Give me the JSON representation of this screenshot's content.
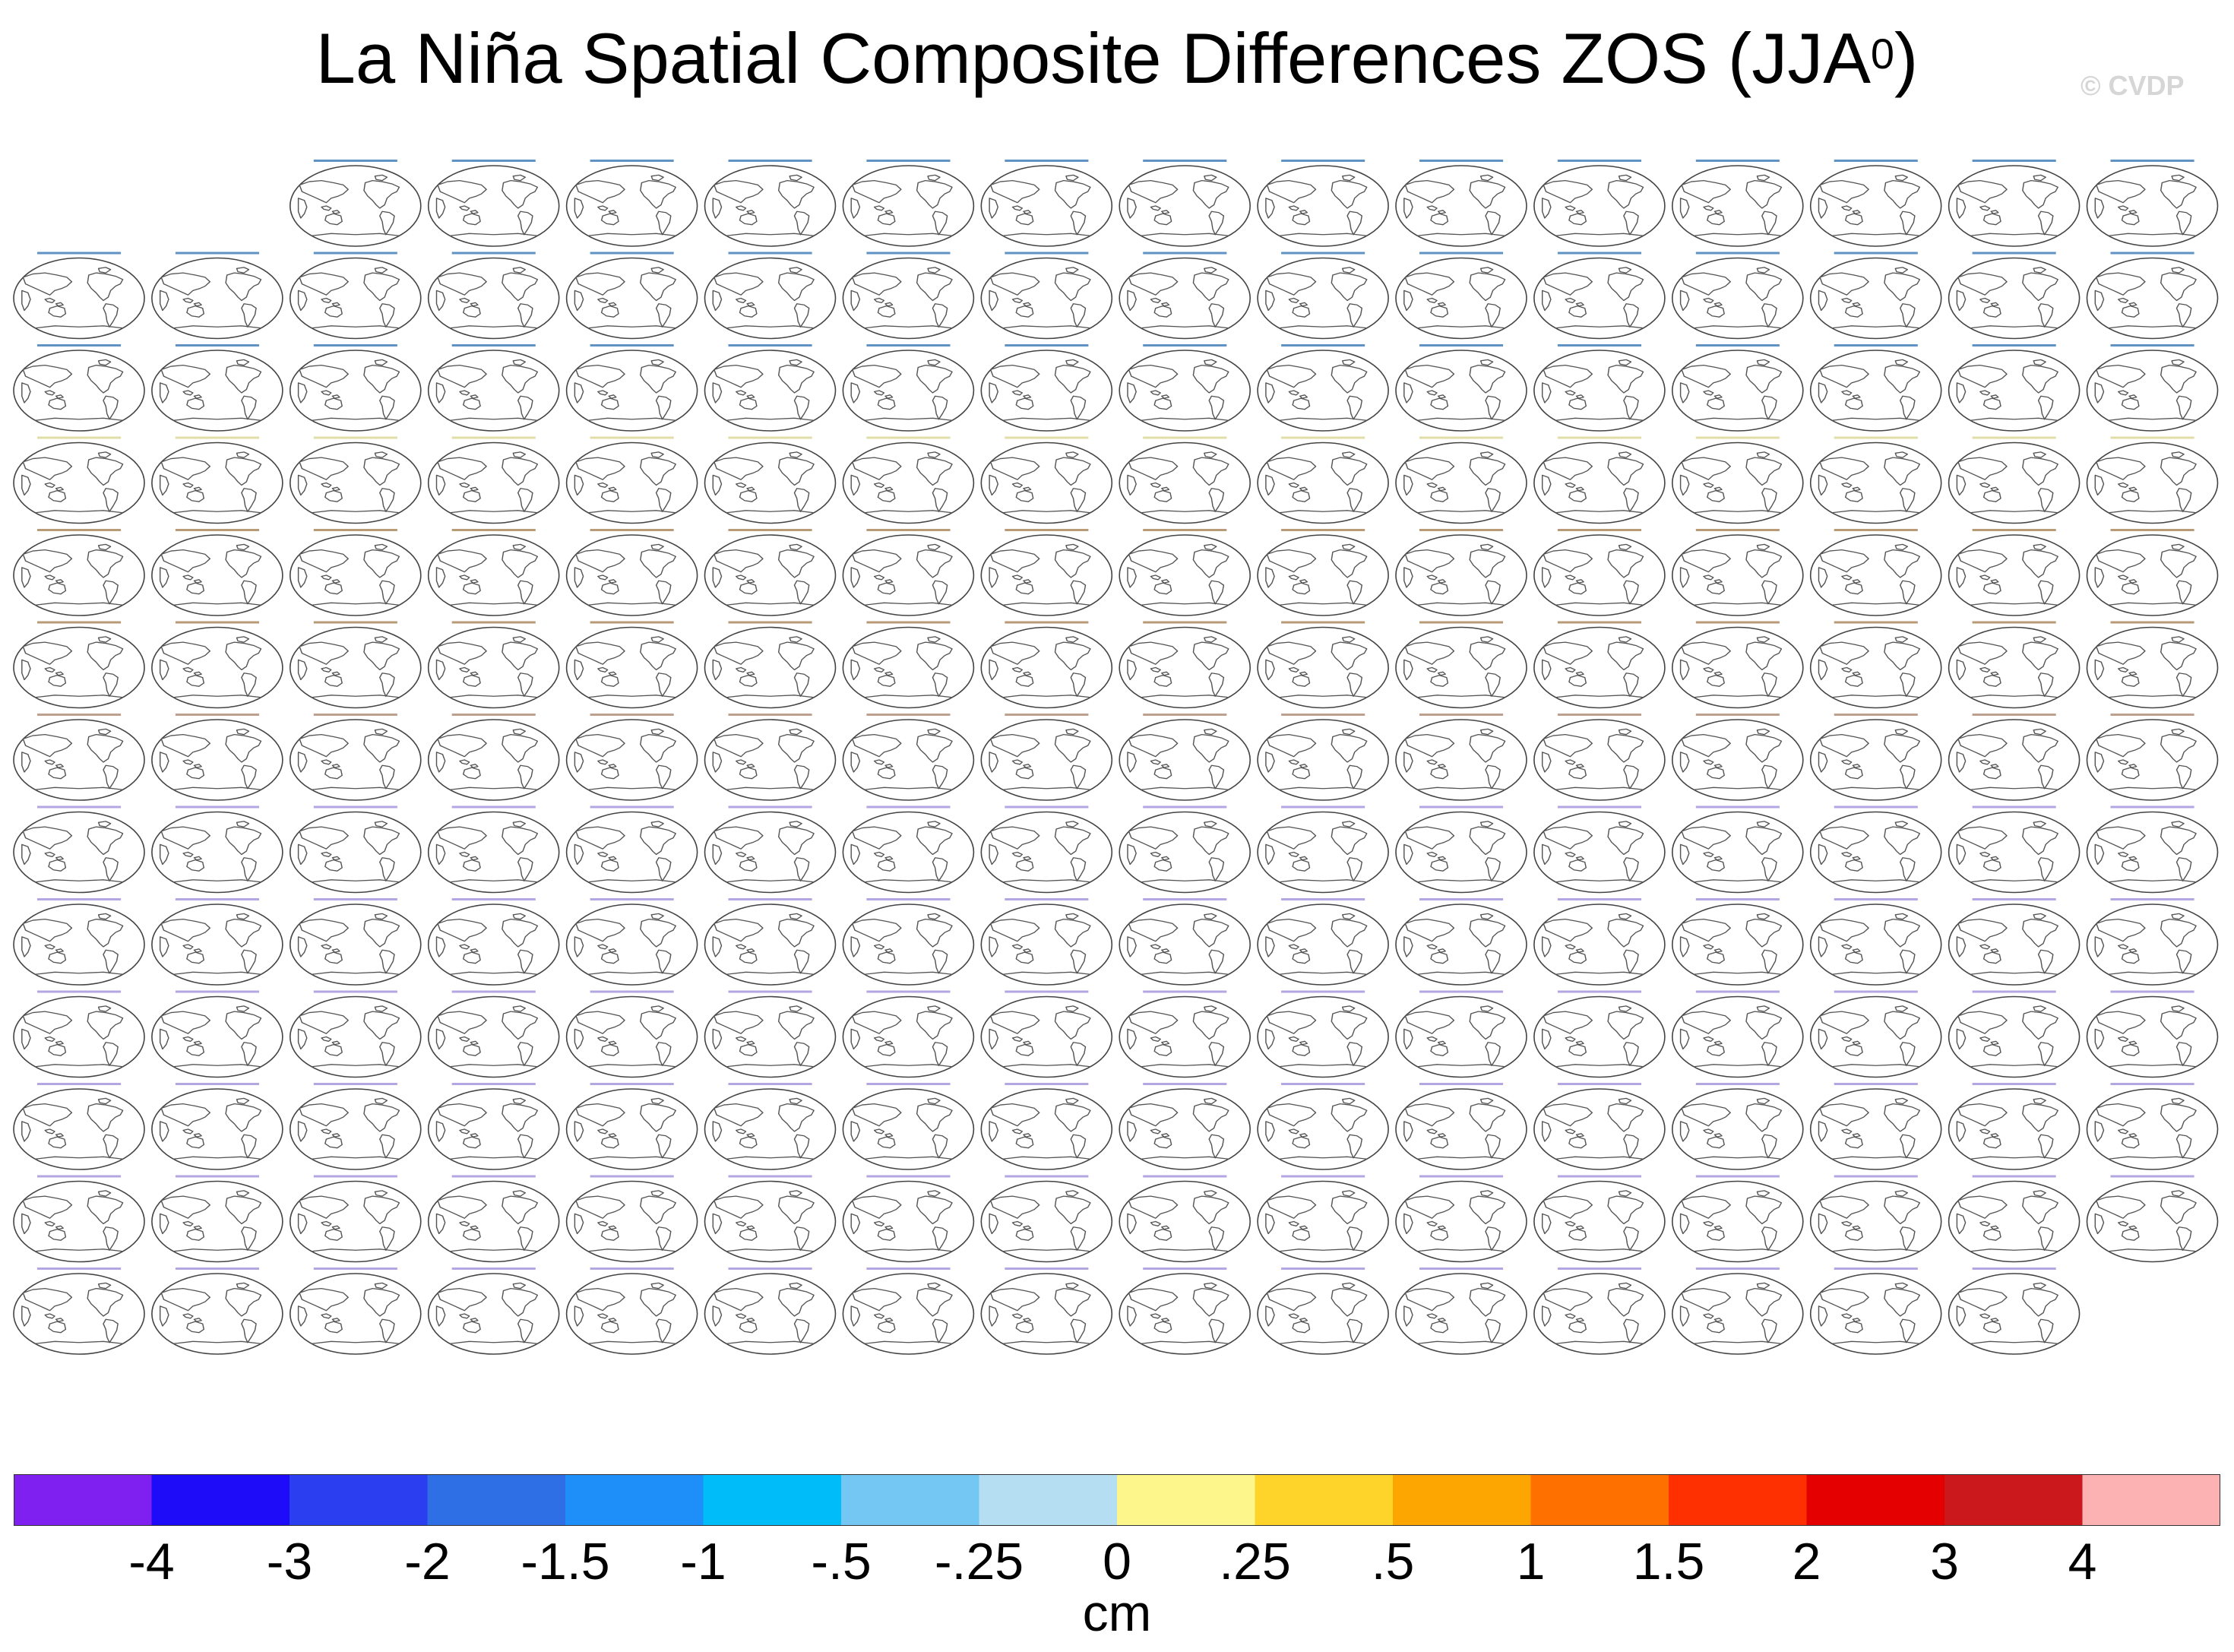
{
  "title": "La Niña Spatial Composite Differences ZOS (JJA",
  "title_sup": "0",
  "title_close": ")",
  "watermark": "© CVDP",
  "chart_data": {
    "type": "panel-grid",
    "title": "La Niña Spatial Composite Differences ZOS (JJA0)",
    "variable": "ZOS",
    "season": "JJA0",
    "colorbar": {
      "units": "cm",
      "levels": [
        "-4",
        "-3",
        "-2",
        "-1.5",
        "-1",
        "-.5",
        "-.25",
        "0",
        ".25",
        ".5",
        "1",
        "1.5",
        "2",
        "3",
        "4"
      ],
      "colors": [
        "#7f1ff0",
        "#1e0bf8",
        "#2c3ff0",
        "#2f6fe6",
        "#1e8ff8",
        "#00bdfa",
        "#74c7f2",
        "#b5def3",
        "#fdf68a",
        "#fed42a",
        "#fda500",
        "#fe7100",
        "#fe2f00",
        "#e40000",
        "#cb181d",
        "#fcb1b2"
      ]
    },
    "panel_rows": [
      {
        "count": 14,
        "offset": 2,
        "color": "#2b6fb0"
      },
      {
        "count": 16,
        "offset": 0,
        "color": "#2b6fb0"
      },
      {
        "count": 16,
        "offset": 0,
        "color": "#2b6fb0"
      },
      {
        "count": 16,
        "offset": 0,
        "color": "#d6d28a"
      },
      {
        "count": 16,
        "offset": 0,
        "color": "#a0784a"
      },
      {
        "count": 16,
        "offset": 0,
        "color": "#a0784a"
      },
      {
        "count": 16,
        "offset": 0,
        "color": "#a8806a"
      },
      {
        "count": 16,
        "offset": 0,
        "color": "#9a88d8"
      },
      {
        "count": 16,
        "offset": 0,
        "color": "#9a88d8"
      },
      {
        "count": 16,
        "offset": 0,
        "color": "#9a88d8"
      },
      {
        "count": 16,
        "offset": 0,
        "color": "#9a88d8"
      },
      {
        "count": 16,
        "offset": 0,
        "color": "#9a88d8"
      },
      {
        "count": 15,
        "offset": 0,
        "color": "#9a88d8"
      }
    ]
  }
}
